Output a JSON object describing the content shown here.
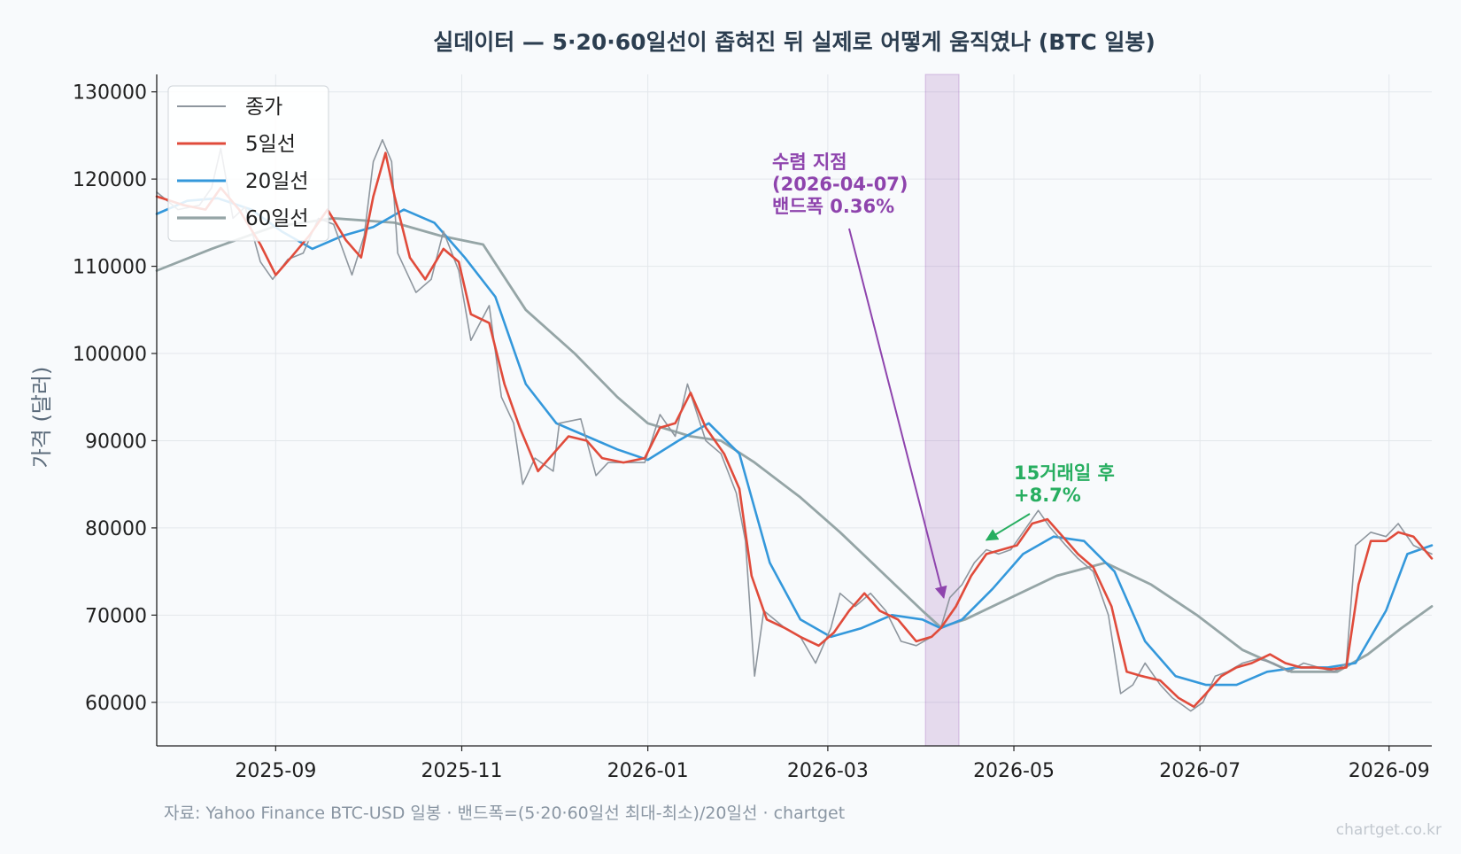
{
  "chart_data": {
    "type": "line",
    "title": "실데이터 — 5·20·60일선이 좁혀진 뒤 실제로 어떻게 움직였나 (BTC 일봉)",
    "xlabel": "",
    "ylabel": "가격 (달러)",
    "x_range": [
      "2025-07-24",
      "2026-09-15"
    ],
    "ylim": [
      55000,
      132000
    ],
    "yticks": [
      60000,
      70000,
      80000,
      90000,
      100000,
      110000,
      120000,
      130000
    ],
    "ytick_labels": [
      "60000",
      "70000",
      "80000",
      "90000",
      "100000",
      "110000",
      "120000",
      "130000"
    ],
    "xticks": [
      "2025-09-01",
      "2025-11-01",
      "2026-01-01",
      "2026-03-01",
      "2026-05-01",
      "2026-07-01",
      "2026-09-01"
    ],
    "xtick_labels": [
      "2025-09",
      "2025-11",
      "2026-01",
      "2026-03",
      "2026-05",
      "2026-07",
      "2026-09"
    ],
    "grid": true,
    "legend_position": "top-left",
    "series": [
      {
        "name": "종가",
        "color": "#8e969e",
        "points": [
          [
            "2025-07-24",
            118500
          ],
          [
            "2025-07-31",
            116500
          ],
          [
            "2025-08-07",
            117000
          ],
          [
            "2025-08-11",
            119000
          ],
          [
            "2025-08-14",
            123500
          ],
          [
            "2025-08-18",
            115500
          ],
          [
            "2025-08-22",
            116800
          ],
          [
            "2025-08-27",
            110500
          ],
          [
            "2025-08-31",
            108500
          ],
          [
            "2025-09-05",
            110800
          ],
          [
            "2025-09-10",
            111500
          ],
          [
            "2025-09-15",
            115500
          ],
          [
            "2025-09-20",
            114800
          ],
          [
            "2025-09-26",
            109000
          ],
          [
            "2025-09-30",
            113500
          ],
          [
            "2025-10-03",
            122000
          ],
          [
            "2025-10-06",
            124500
          ],
          [
            "2025-10-09",
            122000
          ],
          [
            "2025-10-11",
            111500
          ],
          [
            "2025-10-17",
            107000
          ],
          [
            "2025-10-22",
            108500
          ],
          [
            "2025-10-26",
            114000
          ],
          [
            "2025-10-31",
            109500
          ],
          [
            "2025-11-04",
            101500
          ],
          [
            "2025-11-10",
            105500
          ],
          [
            "2025-11-14",
            95000
          ],
          [
            "2025-11-18",
            92000
          ],
          [
            "2025-11-21",
            85000
          ],
          [
            "2025-11-25",
            88000
          ],
          [
            "2025-12-01",
            86500
          ],
          [
            "2025-12-03",
            92000
          ],
          [
            "2025-12-10",
            92500
          ],
          [
            "2025-12-15",
            86000
          ],
          [
            "2025-12-19",
            87500
          ],
          [
            "2025-12-24",
            87500
          ],
          [
            "2025-12-31",
            87500
          ],
          [
            "2026-01-05",
            93000
          ],
          [
            "2026-01-10",
            90500
          ],
          [
            "2026-01-14",
            96500
          ],
          [
            "2026-01-20",
            90000
          ],
          [
            "2026-01-25",
            88500
          ],
          [
            "2026-01-30",
            84000
          ],
          [
            "2026-02-02",
            78500
          ],
          [
            "2026-02-05",
            63000
          ],
          [
            "2026-02-08",
            70500
          ],
          [
            "2026-02-15",
            68500
          ],
          [
            "2026-02-20",
            67500
          ],
          [
            "2026-02-25",
            64500
          ],
          [
            "2026-03-02",
            68500
          ],
          [
            "2026-03-05",
            72500
          ],
          [
            "2026-03-10",
            71000
          ],
          [
            "2026-03-15",
            72500
          ],
          [
            "2026-03-20",
            70500
          ],
          [
            "2026-03-25",
            67000
          ],
          [
            "2026-03-30",
            66500
          ],
          [
            "2026-04-04",
            67500
          ],
          [
            "2026-04-07",
            68500
          ],
          [
            "2026-04-10",
            72000
          ],
          [
            "2026-04-14",
            73500
          ],
          [
            "2026-04-18",
            76000
          ],
          [
            "2026-04-22",
            77500
          ],
          [
            "2026-04-26",
            77000
          ],
          [
            "2026-04-30",
            77500
          ],
          [
            "2026-05-05",
            80000
          ],
          [
            "2026-05-09",
            82000
          ],
          [
            "2026-05-13",
            80000
          ],
          [
            "2026-05-18",
            78000
          ],
          [
            "2026-05-22",
            76500
          ],
          [
            "2026-05-27",
            75000
          ],
          [
            "2026-06-01",
            70000
          ],
          [
            "2026-06-05",
            61000
          ],
          [
            "2026-06-09",
            62000
          ],
          [
            "2026-06-13",
            64500
          ],
          [
            "2026-06-18",
            62000
          ],
          [
            "2026-06-22",
            60500
          ],
          [
            "2026-06-28",
            59000
          ],
          [
            "2026-07-02",
            60000
          ],
          [
            "2026-07-06",
            63000
          ],
          [
            "2026-07-10",
            63500
          ],
          [
            "2026-07-15",
            64500
          ],
          [
            "2026-07-20",
            65000
          ],
          [
            "2026-07-25",
            64500
          ],
          [
            "2026-07-30",
            63500
          ],
          [
            "2026-08-04",
            64500
          ],
          [
            "2026-08-09",
            64000
          ],
          [
            "2026-08-14",
            63500
          ],
          [
            "2026-08-18",
            64500
          ],
          [
            "2026-08-21",
            78000
          ],
          [
            "2026-08-26",
            79500
          ],
          [
            "2026-08-31",
            79000
          ],
          [
            "2026-09-04",
            80500
          ],
          [
            "2026-09-09",
            78000
          ],
          [
            "2026-09-15",
            77000
          ]
        ]
      },
      {
        "name": "5일선",
        "color": "#e04b3b",
        "points": [
          [
            "2025-07-24",
            118000
          ],
          [
            "2025-08-02",
            117000
          ],
          [
            "2025-08-09",
            116500
          ],
          [
            "2025-08-14",
            119000
          ],
          [
            "2025-08-20",
            116500
          ],
          [
            "2025-08-27",
            112500
          ],
          [
            "2025-09-01",
            109000
          ],
          [
            "2025-09-06",
            111000
          ],
          [
            "2025-09-12",
            113500
          ],
          [
            "2025-09-18",
            116500
          ],
          [
            "2025-09-24",
            113000
          ],
          [
            "2025-09-29",
            111000
          ],
          [
            "2025-10-03",
            118000
          ],
          [
            "2025-10-07",
            123000
          ],
          [
            "2025-10-10",
            118000
          ],
          [
            "2025-10-15",
            111000
          ],
          [
            "2025-10-20",
            108500
          ],
          [
            "2025-10-26",
            112000
          ],
          [
            "2025-10-31",
            110500
          ],
          [
            "2025-11-04",
            104500
          ],
          [
            "2025-11-10",
            103500
          ],
          [
            "2025-11-15",
            96500
          ],
          [
            "2025-11-20",
            91500
          ],
          [
            "2025-11-26",
            86500
          ],
          [
            "2025-12-01",
            88500
          ],
          [
            "2025-12-06",
            90500
          ],
          [
            "2025-12-12",
            90000
          ],
          [
            "2025-12-17",
            88000
          ],
          [
            "2025-12-24",
            87500
          ],
          [
            "2025-12-31",
            88000
          ],
          [
            "2026-01-05",
            91500
          ],
          [
            "2026-01-10",
            92000
          ],
          [
            "2026-01-15",
            95500
          ],
          [
            "2026-01-20",
            91500
          ],
          [
            "2026-01-26",
            88500
          ],
          [
            "2026-01-31",
            84500
          ],
          [
            "2026-02-04",
            74500
          ],
          [
            "2026-02-09",
            69500
          ],
          [
            "2026-02-15",
            68500
          ],
          [
            "2026-02-20",
            67500
          ],
          [
            "2026-02-26",
            66500
          ],
          [
            "2026-03-03",
            68000
          ],
          [
            "2026-03-08",
            70500
          ],
          [
            "2026-03-13",
            72500
          ],
          [
            "2026-03-18",
            70500
          ],
          [
            "2026-03-24",
            69500
          ],
          [
            "2026-03-30",
            67000
          ],
          [
            "2026-04-04",
            67500
          ],
          [
            "2026-04-07",
            68500
          ],
          [
            "2026-04-12",
            71000
          ],
          [
            "2026-04-17",
            74500
          ],
          [
            "2026-04-22",
            77000
          ],
          [
            "2026-04-27",
            77500
          ],
          [
            "2026-05-02",
            78000
          ],
          [
            "2026-05-07",
            80500
          ],
          [
            "2026-05-12",
            81000
          ],
          [
            "2026-05-17",
            79000
          ],
          [
            "2026-05-22",
            77000
          ],
          [
            "2026-05-27",
            75500
          ],
          [
            "2026-06-02",
            71000
          ],
          [
            "2026-06-07",
            63500
          ],
          [
            "2026-06-12",
            63000
          ],
          [
            "2026-06-18",
            62500
          ],
          [
            "2026-06-24",
            60500
          ],
          [
            "2026-06-29",
            59500
          ],
          [
            "2026-07-03",
            61000
          ],
          [
            "2026-07-08",
            63000
          ],
          [
            "2026-07-13",
            64000
          ],
          [
            "2026-07-18",
            64500
          ],
          [
            "2026-07-24",
            65500
          ],
          [
            "2026-07-29",
            64500
          ],
          [
            "2026-08-03",
            64000
          ],
          [
            "2026-08-08",
            64000
          ],
          [
            "2026-08-13",
            63800
          ],
          [
            "2026-08-18",
            64000
          ],
          [
            "2026-08-22",
            73500
          ],
          [
            "2026-08-26",
            78500
          ],
          [
            "2026-08-31",
            78500
          ],
          [
            "2026-09-04",
            79500
          ],
          [
            "2026-09-09",
            79000
          ],
          [
            "2026-09-15",
            76500
          ]
        ]
      },
      {
        "name": "20일선",
        "color": "#3498db",
        "points": [
          [
            "2025-07-24",
            116000
          ],
          [
            "2025-08-03",
            117500
          ],
          [
            "2025-08-13",
            117800
          ],
          [
            "2025-08-24",
            116500
          ],
          [
            "2025-09-03",
            114000
          ],
          [
            "2025-09-13",
            112000
          ],
          [
            "2025-09-23",
            113500
          ],
          [
            "2025-10-03",
            114500
          ],
          [
            "2025-10-13",
            116500
          ],
          [
            "2025-10-23",
            115000
          ],
          [
            "2025-11-02",
            111000
          ],
          [
            "2025-11-12",
            106500
          ],
          [
            "2025-11-22",
            96500
          ],
          [
            "2025-12-02",
            92000
          ],
          [
            "2025-12-12",
            90500
          ],
          [
            "2025-12-22",
            89000
          ],
          [
            "2026-01-01",
            87800
          ],
          [
            "2026-01-11",
            90000
          ],
          [
            "2026-01-21",
            92000
          ],
          [
            "2026-01-31",
            88500
          ],
          [
            "2026-02-10",
            76000
          ],
          [
            "2026-02-20",
            69500
          ],
          [
            "2026-03-02",
            67500
          ],
          [
            "2026-03-12",
            68500
          ],
          [
            "2026-03-22",
            70000
          ],
          [
            "2026-04-01",
            69500
          ],
          [
            "2026-04-07",
            68500
          ],
          [
            "2026-04-14",
            69500
          ],
          [
            "2026-04-24",
            73000
          ],
          [
            "2026-05-04",
            77000
          ],
          [
            "2026-05-14",
            79000
          ],
          [
            "2026-05-24",
            78500
          ],
          [
            "2026-06-03",
            75000
          ],
          [
            "2026-06-13",
            67000
          ],
          [
            "2026-06-23",
            63000
          ],
          [
            "2026-07-03",
            62000
          ],
          [
            "2026-07-13",
            62000
          ],
          [
            "2026-07-23",
            63500
          ],
          [
            "2026-08-02",
            64000
          ],
          [
            "2026-08-12",
            64000
          ],
          [
            "2026-08-21",
            64500
          ],
          [
            "2026-08-31",
            70500
          ],
          [
            "2026-09-07",
            77000
          ],
          [
            "2026-09-15",
            78000
          ]
        ]
      },
      {
        "name": "60일선",
        "color": "#95a5a6",
        "points": [
          [
            "2025-07-24",
            109500
          ],
          [
            "2025-08-11",
            112000
          ],
          [
            "2025-08-31",
            114500
          ],
          [
            "2025-09-20",
            115500
          ],
          [
            "2025-10-10",
            115000
          ],
          [
            "2025-10-25",
            113500
          ],
          [
            "2025-11-08",
            112500
          ],
          [
            "2025-11-22",
            105000
          ],
          [
            "2025-12-08",
            100000
          ],
          [
            "2025-12-22",
            95000
          ],
          [
            "2026-01-01",
            92000
          ],
          [
            "2026-01-15",
            90500
          ],
          [
            "2026-01-25",
            90000
          ],
          [
            "2026-02-05",
            87500
          ],
          [
            "2026-02-20",
            83500
          ],
          [
            "2026-03-05",
            79500
          ],
          [
            "2026-03-20",
            74500
          ],
          [
            "2026-04-01",
            70500
          ],
          [
            "2026-04-07",
            68600
          ],
          [
            "2026-04-15",
            69500
          ],
          [
            "2026-04-30",
            72000
          ],
          [
            "2026-05-15",
            74500
          ],
          [
            "2026-05-31",
            76000
          ],
          [
            "2026-06-15",
            73500
          ],
          [
            "2026-06-30",
            70000
          ],
          [
            "2026-07-15",
            66000
          ],
          [
            "2026-07-31",
            63500
          ],
          [
            "2026-08-15",
            63500
          ],
          [
            "2026-08-25",
            65500
          ],
          [
            "2026-09-05",
            68500
          ],
          [
            "2026-09-15",
            71000
          ]
        ]
      }
    ],
    "highlight_band": {
      "start": "2026-04-02",
      "end": "2026-04-13",
      "color": "#9b59b6"
    },
    "annotations": [
      {
        "id": "converge",
        "lines": [
          "수렴 지점",
          "(2026-04-07)",
          "밴드폭 0.36%"
        ],
        "color": "#8e44ad",
        "arrow_to": [
          "2026-04-08",
          72000
        ]
      },
      {
        "id": "after",
        "lines": [
          "15거래일 후",
          "+8.7%"
        ],
        "color": "#27ae60",
        "arrow_to": [
          "2026-04-22",
          78500
        ]
      }
    ],
    "source_note": "자료: Yahoo Finance BTC-USD 일봉 · 밴드폭=(5·20·60일선 최대-최소)/20일선 · chartget",
    "watermark": "chartget.co.kr"
  }
}
